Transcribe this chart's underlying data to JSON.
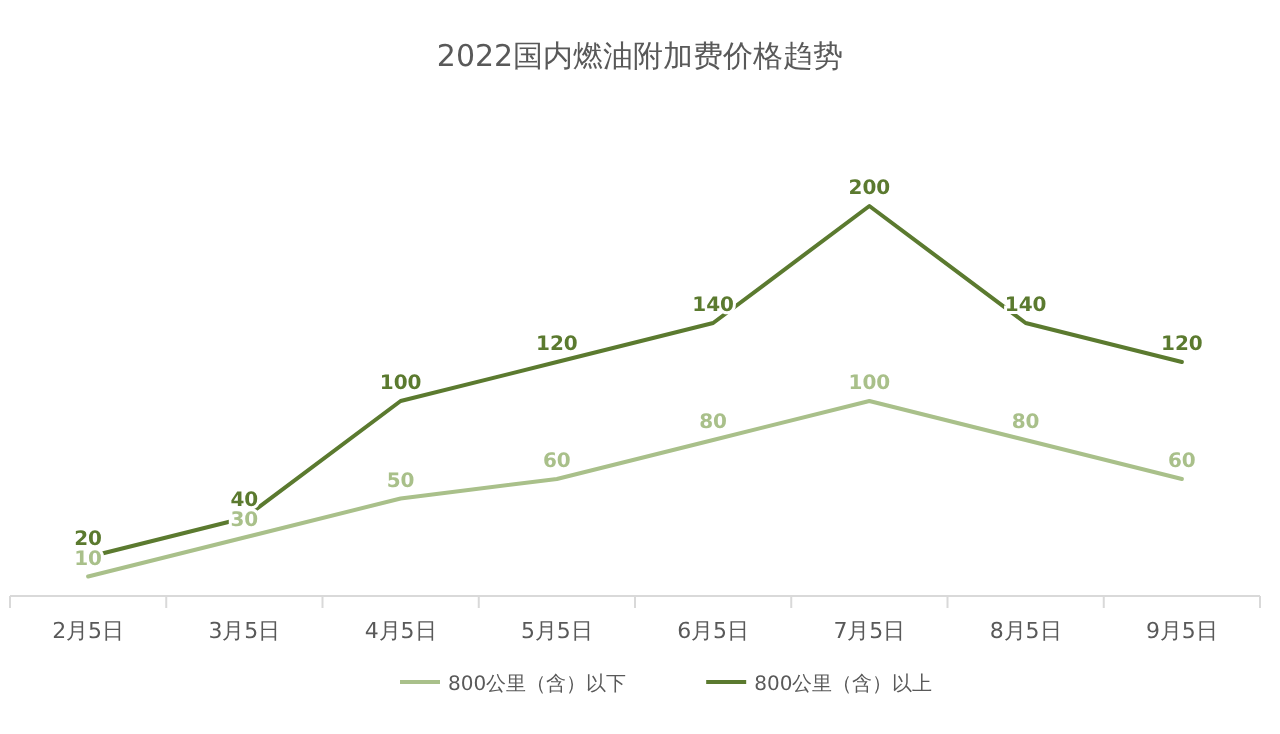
{
  "chart_data": {
    "type": "line",
    "title": "2022国内燃油附加费价格趋势",
    "categories": [
      "2月5日",
      "3月5日",
      "4月5日",
      "5月5日",
      "6月5日",
      "7月5日",
      "8月5日",
      "9月5日"
    ],
    "series": [
      {
        "name": "800公里（含）以下",
        "color": "#a9c08a",
        "values": [
          10,
          30,
          50,
          60,
          80,
          100,
          80,
          60
        ]
      },
      {
        "name": "800公里（含）以上",
        "color": "#5b7a2f",
        "values": [
          20,
          40,
          100,
          120,
          140,
          200,
          140,
          120
        ]
      }
    ],
    "data_labels": true,
    "legend": "bottom",
    "line_style": "solid"
  }
}
